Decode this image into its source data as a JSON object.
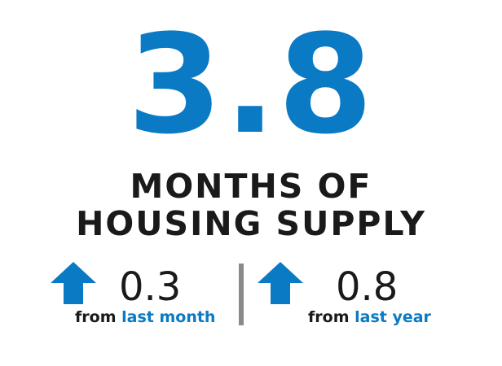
{
  "headline_number": "3.8",
  "headline_line1": "MONTHS OF",
  "headline_line2": "HOUSING SUPPLY",
  "changes": [
    {
      "direction": "up",
      "value": "0.3",
      "from_text": "from",
      "period_text": "last month"
    },
    {
      "direction": "up",
      "value": "0.8",
      "from_text": "from",
      "period_text": "last year"
    }
  ],
  "colors": {
    "accent_blue": "#0a7ac4",
    "text_dark": "#1a1a1a",
    "divider_gray": "#8a8a8a"
  },
  "icons": {
    "arrow": "arrow-up-icon"
  }
}
